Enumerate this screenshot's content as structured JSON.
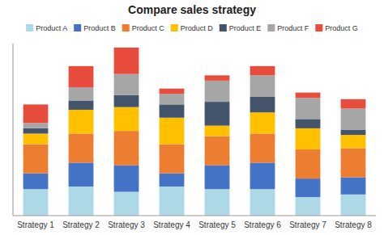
{
  "chart_data": {
    "type": "bar",
    "title": "Compare sales strategy",
    "stacked": true,
    "grid": false,
    "legend": "top",
    "tick_labels": "x",
    "categories": [
      "Strategy 1",
      "Strategy 2",
      "Strategy 3",
      "Strategy 4",
      "Strategy 5",
      "Strategy 6",
      "Strategy 7",
      "Strategy 8"
    ],
    "ylim": [
      0,
      130
    ],
    "series": [
      {
        "name": "Product A",
        "color": "#add8e6",
        "values": [
          20,
          22,
          18,
          22,
          20,
          20,
          14,
          16
        ]
      },
      {
        "name": "Product B",
        "color": "#4472c4",
        "values": [
          12,
          18,
          20,
          10,
          18,
          20,
          14,
          13
        ]
      },
      {
        "name": "Product C",
        "color": "#ed7d31",
        "values": [
          22,
          22,
          26,
          22,
          22,
          22,
          22,
          22
        ]
      },
      {
        "name": "Product D",
        "color": "#ffc000",
        "values": [
          8,
          18,
          18,
          20,
          8,
          16,
          16,
          10
        ]
      },
      {
        "name": "Product E",
        "color": "#44546a",
        "values": [
          4,
          7,
          9,
          10,
          18,
          12,
          7,
          4
        ]
      },
      {
        "name": "Product F",
        "color": "#a6a6a6",
        "values": [
          4,
          10,
          16,
          8,
          16,
          16,
          16,
          16
        ]
      },
      {
        "name": "Product G",
        "color": "#e74c3c",
        "values": [
          14,
          16,
          20,
          4,
          4,
          7,
          4,
          7
        ]
      }
    ]
  }
}
